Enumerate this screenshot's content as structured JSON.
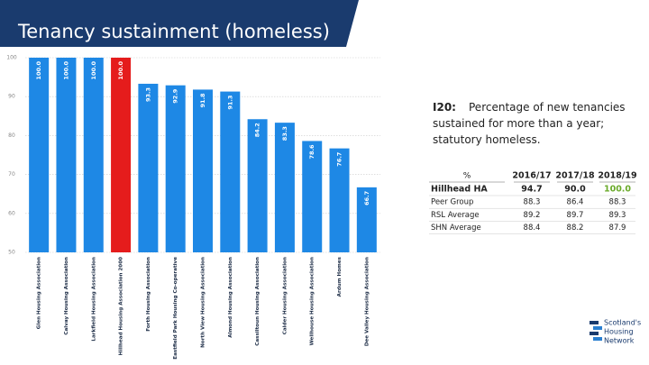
{
  "header": {
    "title": "Tenancy sustainment (homeless)"
  },
  "chart_data": {
    "type": "bar",
    "categories": [
      "Glen Housing Association",
      "Calvay Housing Association",
      "Larkfield Housing Association",
      "Hillhead Housing Association 2000",
      "Forth Housing Association",
      "Eastfield Park Housing Co-operative",
      "North View Housing Association",
      "Almond Housing Association",
      "Cassiltoun Housing Association",
      "Calder Housing Association",
      "Wellhouse Housing Association",
      "Ardum Homes",
      "Dee Valley Housing Association"
    ],
    "values": [
      100,
      100,
      100,
      100,
      93.3,
      92.9,
      91.8,
      91.3,
      84.2,
      83.3,
      78.6,
      76.7,
      66.7
    ],
    "value_labels": [
      "100.0",
      "100.0",
      "100.0",
      "100.0",
      "93.3",
      "92.9",
      "91.8",
      "91.3",
      "84.2",
      "83.3",
      "78.6",
      "76.7",
      "66.7"
    ],
    "colors": [
      "#1e88e5",
      "#1e88e5",
      "#1e88e5",
      "#e51c1c",
      "#1e88e5",
      "#1e88e5",
      "#1e88e5",
      "#1e88e5",
      "#1e88e5",
      "#1e88e5",
      "#1e88e5",
      "#1e88e5",
      "#1e88e5"
    ],
    "ylim": [
      50,
      100
    ],
    "yticks": [
      50,
      60,
      70,
      80,
      90,
      100
    ],
    "grid": true
  },
  "description": {
    "code": "I20:",
    "text": "Percentage of new tenancies sustained for more than a year; statutory homeless."
  },
  "table": {
    "header": [
      "%",
      "2016/17",
      "2017/18",
      "2018/19"
    ],
    "rows": [
      [
        "Hillhead HA",
        "94.7",
        "90.0",
        "100.0"
      ],
      [
        "Peer Group",
        "88.3",
        "86.4",
        "88.3"
      ],
      [
        "RSL Average",
        "89.2",
        "89.7",
        "89.3"
      ],
      [
        "SHN Average",
        "88.4",
        "88.2",
        "87.9"
      ]
    ]
  },
  "logo": {
    "lines": [
      "Scotland's",
      "Housing",
      "Network"
    ]
  }
}
